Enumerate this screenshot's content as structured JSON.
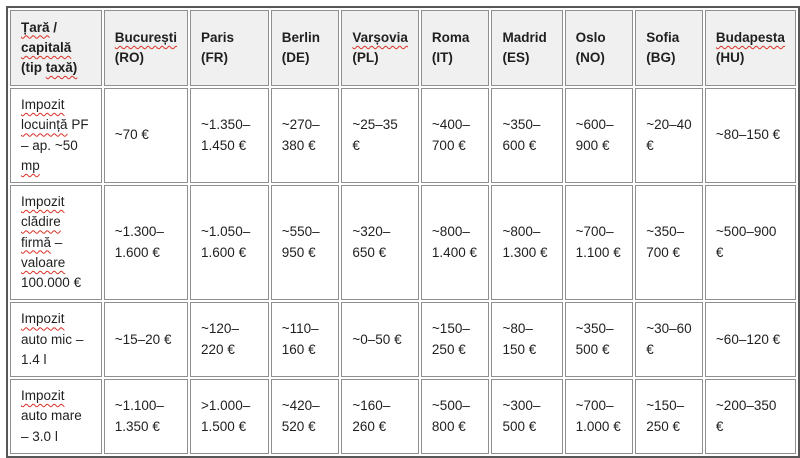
{
  "table": {
    "columns": [
      "Țară / capitală (tip taxă)",
      "București (RO)",
      "Paris (FR)",
      "Berlin (DE)",
      "Varșovia (PL)",
      "Roma (IT)",
      "Madrid (ES)",
      "Oslo (NO)",
      "Sofia (BG)",
      "Budapesta (HU)"
    ],
    "rows": [
      {
        "label": "Impozit locuință PF – ap. ~50 mp",
        "values": [
          "~70 €",
          "~1.350–1.450 €",
          "~270–380 €",
          "~25–35 €",
          "~400–700 €",
          "~350–600 €",
          "~600–900 €",
          "~20–40 €",
          "~80–150 €"
        ]
      },
      {
        "label": "Impozit clădire firmă – valoare 100.000 €",
        "values": [
          "~1.300–1.600 €",
          "~1.050–1.600 €",
          "~550–950 €",
          "~320–650 €",
          "~800–1.400 €",
          "~800–1.300 €",
          "~700–1.100 €",
          "~350–700 €",
          "~500–900 €"
        ]
      },
      {
        "label": "Impozit auto mic – 1.4 l",
        "values": [
          "~15–20 €",
          "~120–220 €",
          "~110–160 €",
          "~0–50 €",
          "~150–250 €",
          "~80–150 €",
          "~350–500 €",
          "~30–60 €",
          "~60–120 €"
        ]
      },
      {
        "label": "Impozit auto mare – 3.0 l",
        "values": [
          "~1.100–1.350 €",
          ">1.000–1.500 €",
          "~420–520 €",
          "~160–260 €",
          "~500–800 €",
          "~300–500 €",
          "~700–1.000 €",
          "~150–250 €",
          "~200–350 €"
        ]
      }
    ]
  },
  "misspelled_words": [
    "Țară",
    "capitală",
    "taxă",
    "București",
    "Varșovia",
    "Budapesta",
    "Impozit",
    "locuință",
    "mp",
    "clădire",
    "firmă",
    "valoare"
  ],
  "colors": {
    "header_bg": "#f0f0f0",
    "border_outer": "#575757",
    "border_cell": "#8f8f8f",
    "text": "#1f1f1f",
    "squiggle": "#d93025"
  }
}
